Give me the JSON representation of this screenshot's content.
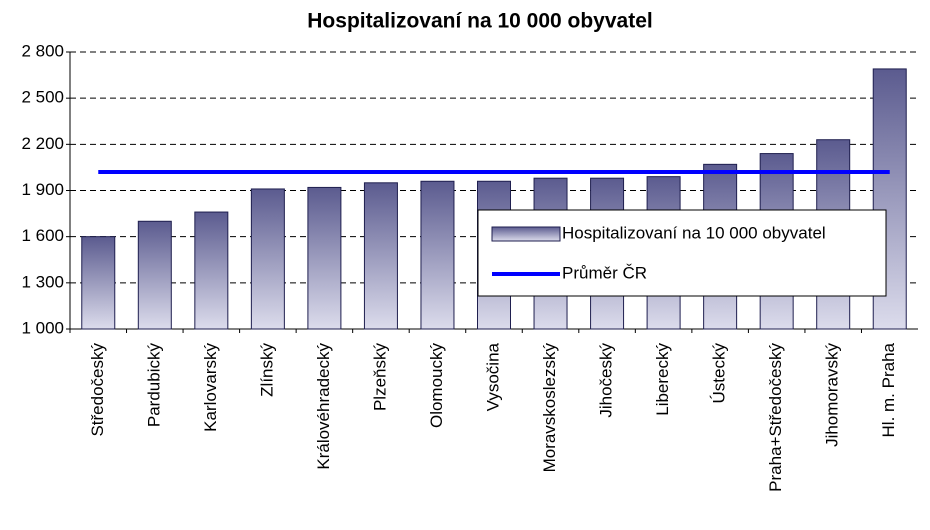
{
  "chart_data": {
    "type": "bar",
    "title": "Hospitalizovaní na 10 000 obyvatel",
    "categories": [
      "Středočeský",
      "Pardubický",
      "Karlovarský",
      "Zlínský",
      "Královéhradecký",
      "Plzeňský",
      "Olomoucký",
      "Vysočina",
      "Moravskoslezský",
      "Jihočeský",
      "Liberecký",
      "Ústecký",
      "Praha+Středočeský",
      "Jihomoravský",
      "Hl. m. Praha"
    ],
    "series": [
      {
        "name": "Hospitalizovaní na 10 000 obyvatel",
        "type": "bar",
        "color": "#5b5b8f",
        "values": [
          1600,
          1700,
          1760,
          1910,
          1920,
          1950,
          1960,
          1960,
          1980,
          1980,
          1990,
          2070,
          2140,
          2230,
          2690
        ]
      },
      {
        "name": "Průměr ČR",
        "type": "line",
        "color": "#0000ff",
        "values": [
          2020,
          2020,
          2020,
          2020,
          2020,
          2020,
          2020,
          2020,
          2020,
          2020,
          2020,
          2020,
          2020,
          2020,
          2020
        ]
      }
    ],
    "ylim": [
      1000,
      2800
    ],
    "yticks": [
      {
        "value": 1000,
        "label": "1 000"
      },
      {
        "value": 1300,
        "label": "1 300"
      },
      {
        "value": 1600,
        "label": "1 600"
      },
      {
        "value": 1900,
        "label": "1 900"
      },
      {
        "value": 2200,
        "label": "2 200"
      },
      {
        "value": 2500,
        "label": "2 500"
      },
      {
        "value": 2800,
        "label": "2 800"
      }
    ],
    "grid": true,
    "legend": "center-right"
  }
}
